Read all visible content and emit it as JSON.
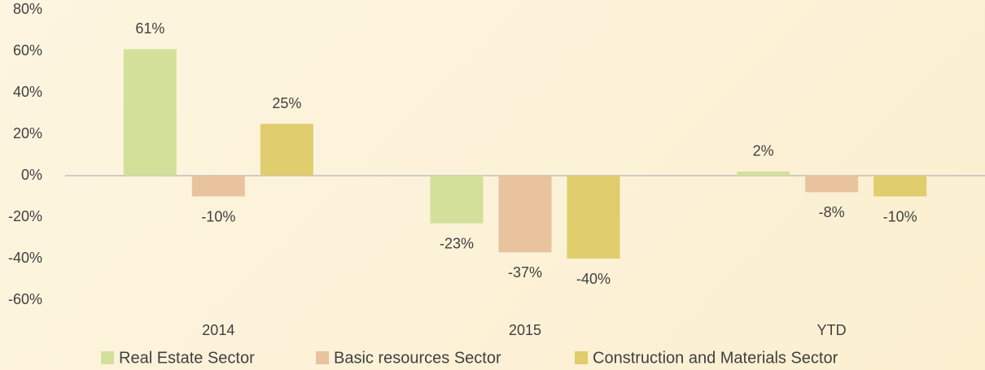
{
  "chart_data": {
    "type": "bar",
    "categories": [
      "2014",
      "2015",
      "YTD"
    ],
    "series": [
      {
        "name": "Real Estate Sector",
        "color": "#d3e09a",
        "values": [
          61,
          -23,
          2
        ],
        "value_labels": [
          "61%",
          "-23%",
          "2%"
        ]
      },
      {
        "name": "Basic resources Sector",
        "color": "#e8c39e",
        "values": [
          -10,
          -37,
          -8
        ],
        "value_labels": [
          "-10%",
          "-37%",
          "-8%"
        ]
      },
      {
        "name": "Construction and Materials Sector",
        "color": "#dfcd6e",
        "values": [
          25,
          -40,
          -10
        ],
        "value_labels": [
          "25%",
          "-40%",
          "-10%"
        ]
      }
    ],
    "ylim": [
      -60,
      80
    ],
    "yticks": [
      {
        "value": -60,
        "label": "-60%"
      },
      {
        "value": -40,
        "label": "-40%"
      },
      {
        "value": -20,
        "label": "-20%"
      },
      {
        "value": 0,
        "label": "0%"
      },
      {
        "value": 20,
        "label": "20%"
      },
      {
        "value": 40,
        "label": "40%"
      },
      {
        "value": 60,
        "label": "60%"
      },
      {
        "value": 80,
        "label": "80%"
      }
    ],
    "grid": false,
    "legend": "bottom"
  }
}
